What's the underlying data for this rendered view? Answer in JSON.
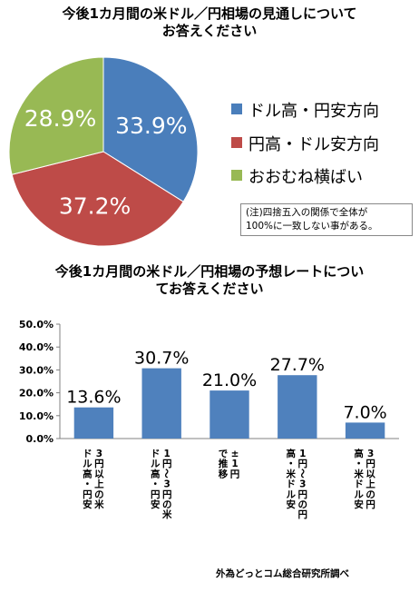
{
  "chart_data": [
    {
      "type": "pie",
      "title": [
        "今後1カ月間の米ドル／円相場の見通しについて",
        "お答えください"
      ],
      "slices": [
        {
          "label": "ドル高・円安方向",
          "value": 33.9,
          "display": "33.9%",
          "color": "#4a7ebb"
        },
        {
          "label": "円高・ドル安方向",
          "value": 37.2,
          "display": "37.2%",
          "color": "#be4b48"
        },
        {
          "label": "おおむね横ばい",
          "value": 28.9,
          "display": "28.9%",
          "color": "#98b954"
        }
      ],
      "legend_position": "right",
      "note": [
        "(注)四捨五入の関係で全体が",
        "100%に一致しない事がある。"
      ]
    },
    {
      "type": "bar",
      "title": [
        "今後1カ月間の米ドル／円相場の予想レートについ",
        "てお答えください"
      ],
      "categories": [
        [
          "3",
          "円",
          "以",
          "上",
          "の",
          "米",
          "ド",
          "ル",
          "高",
          "・",
          "円",
          "安"
        ],
        [
          "1",
          "円",
          "〜",
          "3",
          "円",
          "の",
          "米",
          "ド",
          "ル",
          "高",
          "・",
          "円",
          "安"
        ],
        [
          "±",
          "1",
          "円",
          "で",
          "推",
          "移"
        ],
        [
          "1",
          "円",
          "〜",
          "3",
          "円",
          "の",
          "円",
          "高",
          "・",
          "米",
          "ド",
          "ル",
          "安"
        ],
        [
          "3",
          "円",
          "以",
          "上",
          "の",
          "円",
          "高",
          "・",
          "米",
          "ド",
          "ル",
          "安"
        ]
      ],
      "values": [
        13.6,
        30.7,
        21.0,
        27.7,
        7.0
      ],
      "labels": [
        "13.6%",
        "30.7%",
        "21.0%",
        "27.7%",
        "7.0%"
      ],
      "ylim": [
        0,
        50
      ],
      "yticks": [
        "0.0%",
        "10.0%",
        "20.0%",
        "30.0%",
        "40.0%",
        "50.0%"
      ],
      "bar_color": "#4f81bd",
      "grid": false
    }
  ],
  "credit": "外為どっとコム総合研究所調べ"
}
